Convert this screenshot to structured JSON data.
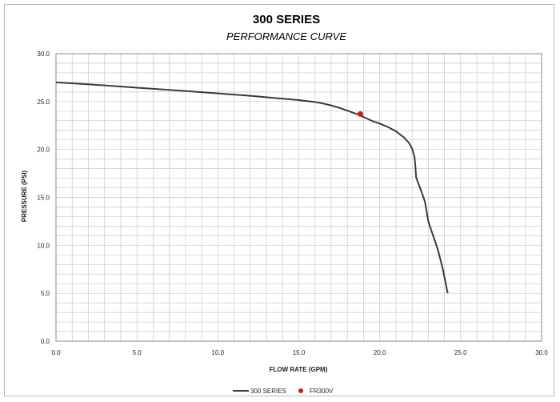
{
  "chart_data": {
    "type": "line",
    "title": "300 SERIES",
    "subtitle": "PERFORMANCE CURVE",
    "xlabel": "FLOW RATE (GPM)",
    "ylabel": "PRESSURE (PSI)",
    "xlim": [
      0,
      30
    ],
    "ylim": [
      0,
      30
    ],
    "x_ticks": [
      "0.0",
      "5.0",
      "10.0",
      "15.0",
      "20.0",
      "25.0",
      "30.0"
    ],
    "y_ticks": [
      "0.0",
      "5.0",
      "10.0",
      "15.0",
      "20.0",
      "25.0",
      "30.0"
    ],
    "grid": true,
    "legend_position": "bottom",
    "series": [
      {
        "name": "300 SERIES",
        "kind": "line",
        "color": "#3a3a3a",
        "x": [
          0,
          2,
          5,
          8,
          10,
          12,
          14,
          15,
          16,
          16.5,
          17,
          17.5,
          18,
          18.5,
          19,
          19.5,
          20,
          20.5,
          21,
          21.5,
          21.8,
          22,
          22.15,
          22.2,
          22.25,
          22.4,
          22.6,
          22.8,
          22.9,
          23.0,
          23.3,
          23.6,
          23.9,
          24.2
        ],
        "y": [
          27.0,
          26.8,
          26.45,
          26.1,
          25.85,
          25.6,
          25.3,
          25.15,
          24.95,
          24.8,
          24.6,
          24.35,
          24.05,
          23.75,
          23.4,
          23.0,
          22.7,
          22.35,
          21.9,
          21.25,
          20.7,
          20.1,
          19.2,
          18.3,
          17.1,
          16.4,
          15.5,
          14.5,
          13.5,
          12.5,
          11.0,
          9.5,
          7.5,
          5.0
        ]
      },
      {
        "name": "FR300V",
        "kind": "point",
        "color": "#c41e1e",
        "x": [
          18.8
        ],
        "y": [
          23.7
        ]
      }
    ]
  }
}
